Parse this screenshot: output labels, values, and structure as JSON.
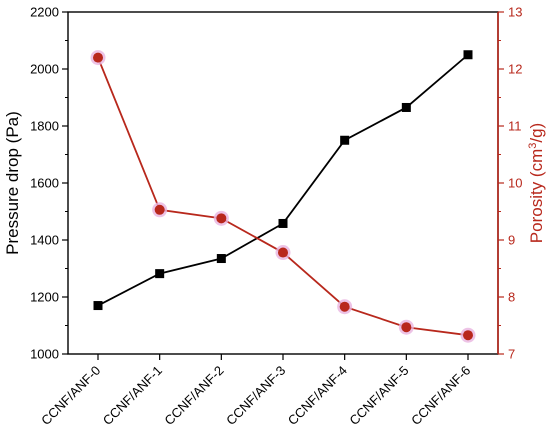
{
  "chart_data": {
    "type": "line",
    "categories": [
      "CCNF/ANF-0",
      "CCNF/ANF-1",
      "CCNF/ANF-2",
      "CCNF/ANF-3",
      "CCNF/ANF-4",
      "CCNF/ANF-5",
      "CCNF/ANF-6"
    ],
    "series": [
      {
        "name": "Pressure drop",
        "axis": "left",
        "marker": "square",
        "color": "#000000",
        "values": [
          1170,
          1282,
          1335,
          1458,
          1750,
          1865,
          2050
        ]
      },
      {
        "name": "Porosity",
        "axis": "right",
        "marker": "circle",
        "color": "#b8281c",
        "marker_halo": "#e8b4e0",
        "values": [
          12.2,
          9.53,
          9.38,
          8.78,
          7.83,
          7.47,
          7.33
        ]
      }
    ],
    "title": "",
    "xlabel": "",
    "ylabel_left": "Pressure drop (Pa)",
    "ylabel_right_prefix": "Porosity (cm",
    "ylabel_right_sup": "3",
    "ylabel_right_suffix": "/g)",
    "ylim_left": [
      1000,
      2200
    ],
    "yticks_left": [
      "1000",
      "1200",
      "1400",
      "1600",
      "1800",
      "2000",
      "2200"
    ],
    "ylim_right": [
      7,
      13
    ],
    "yticks_right": [
      "7",
      "8",
      "9",
      "10",
      "11",
      "12",
      "13"
    ],
    "grid": false,
    "legend": "none",
    "right_axis_color": "#b8281c"
  }
}
